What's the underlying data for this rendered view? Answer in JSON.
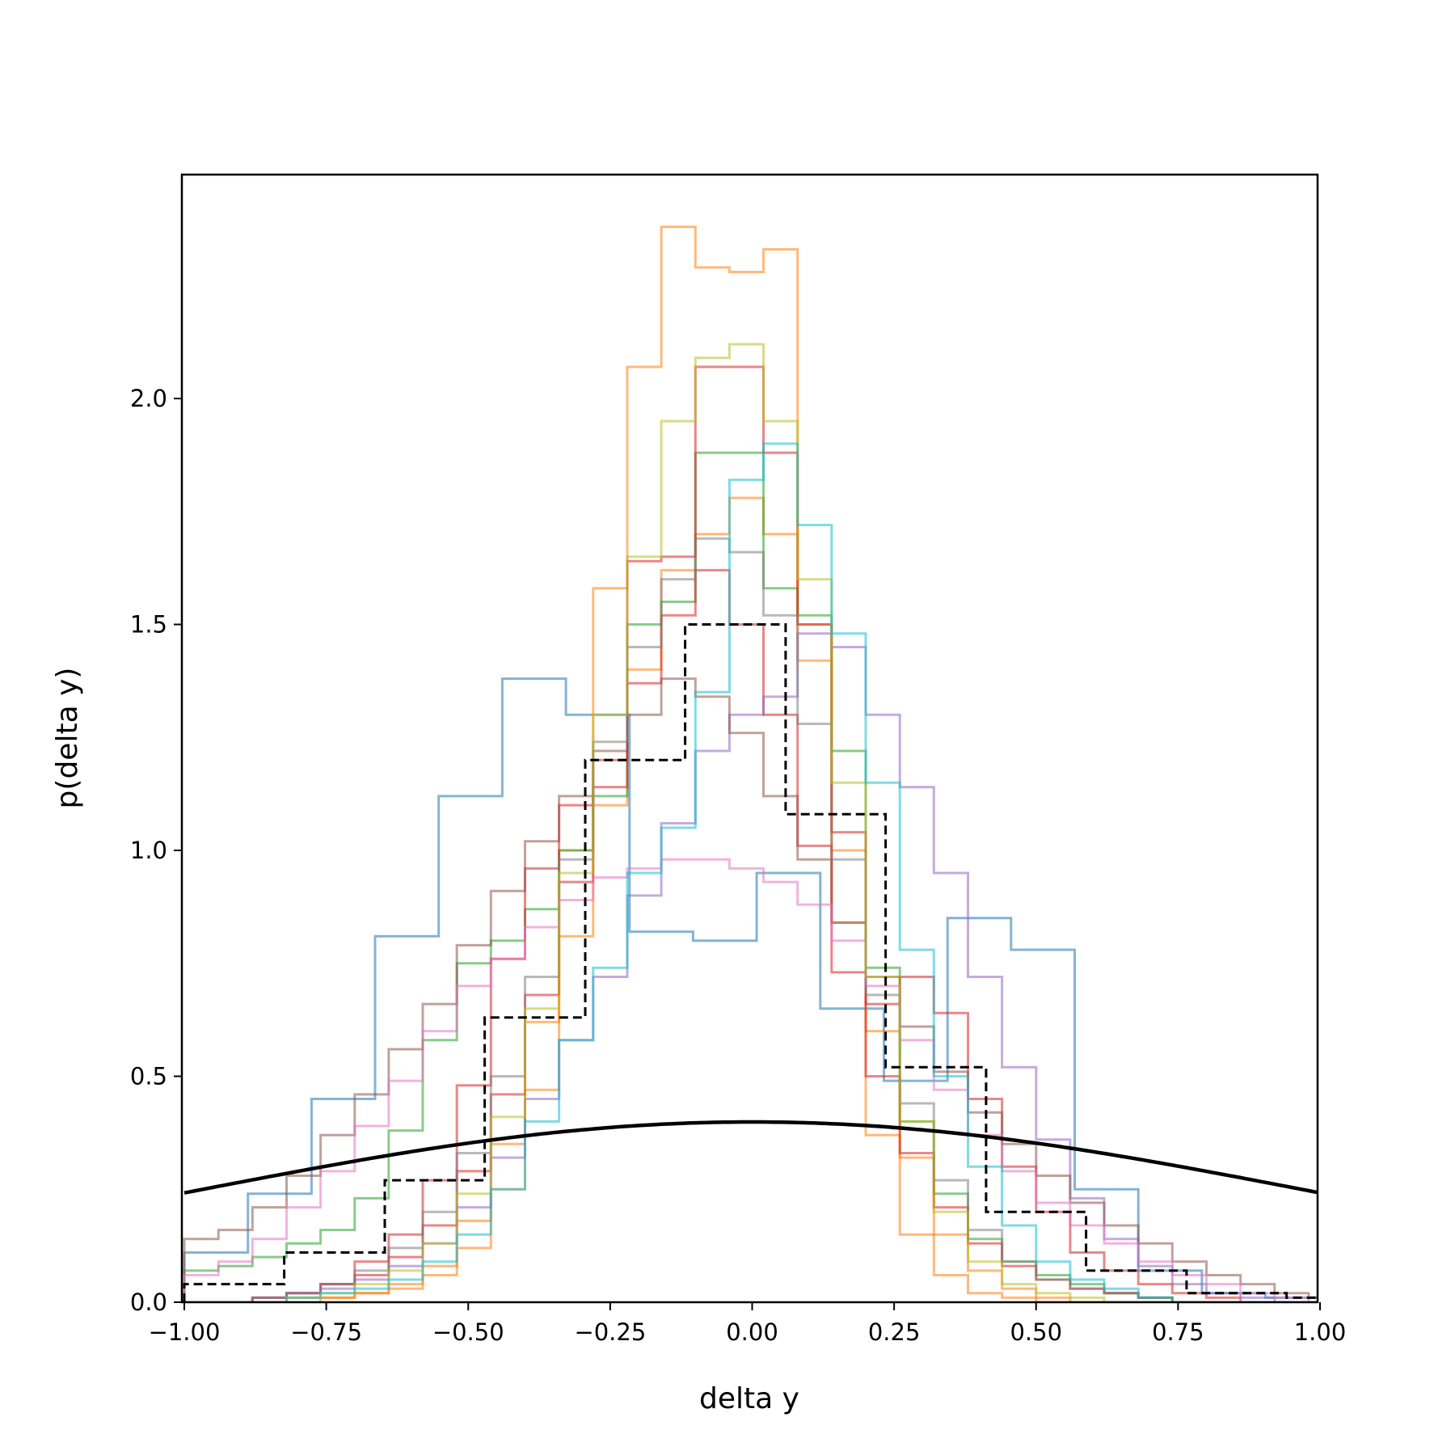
{
  "chart_data": {
    "type": "histogram",
    "title": "",
    "xlabel": "delta y",
    "ylabel": "p(delta y)",
    "xlim": [
      -1.0,
      1.0
    ],
    "ylim": [
      0.0,
      2.5
    ],
    "grid": false,
    "legend": "none",
    "x_ticks": [
      "−1.00",
      "−0.75",
      "−0.50",
      "−0.25",
      "0.00",
      "0.25",
      "0.50",
      "0.75",
      "1.00"
    ],
    "y_ticks": [
      "0.0",
      "0.5",
      "1.0",
      "1.5",
      "2.0"
    ],
    "reference_histogram": {
      "color": "#000000",
      "style": "dashed",
      "edges": [
        -1.0,
        -0.824,
        -0.647,
        -0.471,
        -0.294,
        -0.118,
        0.059,
        0.235,
        0.412,
        0.588,
        0.765,
        0.941,
        1.0
      ],
      "values": [
        0.04,
        0.11,
        0.27,
        0.63,
        1.2,
        1.5,
        1.08,
        0.52,
        0.2,
        0.07,
        0.02,
        0.01
      ]
    },
    "gaussian_curve": {
      "color": "#000000",
      "mean": 0.0,
      "std": 1.0,
      "peak": 0.399
    },
    "histograms": [
      {
        "color": "#1f77b4",
        "edges": [
          -1.0,
          -0.888,
          -0.776,
          -0.664,
          -0.552,
          -0.44,
          -0.328,
          -0.216,
          -0.104,
          0.008,
          0.12,
          0.232,
          0.344,
          0.456,
          0.568,
          0.68,
          0.792,
          0.904,
          1.0
        ],
        "values": [
          0.11,
          0.24,
          0.45,
          0.81,
          1.12,
          1.38,
          1.3,
          0.82,
          0.8,
          0.95,
          0.65,
          0.49,
          0.85,
          0.78,
          0.25,
          0.07,
          0.02,
          0.01
        ]
      },
      {
        "color": "#ff7f0e",
        "edges": [
          -1.0,
          -0.94,
          -0.88,
          -0.82,
          -0.76,
          -0.7,
          -0.64,
          -0.58,
          -0.52,
          -0.46,
          -0.4,
          -0.34,
          -0.28,
          -0.22,
          -0.16,
          -0.1,
          -0.04,
          0.02,
          0.08,
          0.14,
          0.2,
          0.26,
          0.32,
          0.38,
          0.44,
          0.5,
          0.56,
          0.62,
          0.68,
          0.74,
          0.8,
          0.86,
          0.92,
          0.98,
          1.0
        ],
        "values": [
          0.0,
          0.0,
          0.0,
          0.0,
          0.01,
          0.02,
          0.03,
          0.06,
          0.12,
          0.25,
          0.47,
          0.81,
          1.1,
          1.4,
          1.62,
          1.7,
          1.78,
          1.7,
          1.42,
          1.0,
          0.6,
          0.32,
          0.15,
          0.07,
          0.03,
          0.01,
          0.0,
          0.0,
          0.0,
          0.0,
          0.0,
          0.0,
          0.0,
          0.0
        ]
      },
      {
        "color": "#ff7f0e",
        "edges": [
          -1.0,
          -0.94,
          -0.88,
          -0.82,
          -0.76,
          -0.7,
          -0.64,
          -0.58,
          -0.52,
          -0.46,
          -0.4,
          -0.34,
          -0.28,
          -0.22,
          -0.16,
          -0.1,
          -0.04,
          0.02,
          0.08,
          0.14,
          0.2,
          0.26,
          0.32,
          0.38,
          0.44,
          0.5,
          0.56,
          0.62,
          0.68,
          0.74,
          0.8,
          0.86,
          0.92,
          0.98,
          1.0
        ],
        "values": [
          0.0,
          0.0,
          0.0,
          0.01,
          0.01,
          0.02,
          0.04,
          0.08,
          0.18,
          0.35,
          0.62,
          1.0,
          1.58,
          2.07,
          2.38,
          2.29,
          2.28,
          2.33,
          1.5,
          0.84,
          0.37,
          0.15,
          0.06,
          0.02,
          0.01,
          0.0,
          0.0,
          0.0,
          0.0,
          0.0,
          0.0,
          0.0,
          0.0,
          0.0
        ]
      },
      {
        "color": "#2ca02c",
        "edges": [
          -1.0,
          -0.94,
          -0.88,
          -0.82,
          -0.76,
          -0.7,
          -0.64,
          -0.58,
          -0.52,
          -0.46,
          -0.4,
          -0.34,
          -0.28,
          -0.22,
          -0.16,
          -0.1,
          -0.04,
          0.02,
          0.08,
          0.14,
          0.2,
          0.26,
          0.32,
          0.38,
          0.44,
          0.5,
          0.56,
          0.62,
          0.68,
          0.74,
          0.8,
          0.86,
          0.92,
          0.98,
          1.0
        ],
        "values": [
          0.07,
          0.08,
          0.1,
          0.13,
          0.16,
          0.23,
          0.38,
          0.58,
          0.75,
          0.8,
          0.87,
          1.0,
          1.12,
          1.5,
          1.55,
          1.88,
          1.88,
          1.58,
          1.52,
          1.22,
          0.74,
          0.4,
          0.24,
          0.14,
          0.09,
          0.06,
          0.04,
          0.02,
          0.01,
          0.0,
          0.0,
          0.0,
          0.0,
          0.0
        ]
      },
      {
        "color": "#d62728",
        "edges": [
          -1.0,
          -0.94,
          -0.88,
          -0.82,
          -0.76,
          -0.7,
          -0.64,
          -0.58,
          -0.52,
          -0.46,
          -0.4,
          -0.34,
          -0.28,
          -0.22,
          -0.16,
          -0.1,
          -0.04,
          0.02,
          0.08,
          0.14,
          0.2,
          0.26,
          0.32,
          0.38,
          0.44,
          0.5,
          0.56,
          0.62,
          0.68,
          0.74,
          0.8,
          0.86,
          0.92,
          0.98,
          1.0
        ],
        "values": [
          0.0,
          0.0,
          0.01,
          0.02,
          0.04,
          0.06,
          0.1,
          0.17,
          0.29,
          0.46,
          0.68,
          0.93,
          1.14,
          1.37,
          1.52,
          1.62,
          1.5,
          1.3,
          1.01,
          0.73,
          0.5,
          0.33,
          0.21,
          0.13,
          0.08,
          0.05,
          0.03,
          0.02,
          0.01,
          0.0,
          0.0,
          0.0,
          0.0,
          0.0
        ]
      },
      {
        "color": "#d62728",
        "edges": [
          -1.0,
          -0.94,
          -0.88,
          -0.82,
          -0.76,
          -0.7,
          -0.64,
          -0.58,
          -0.52,
          -0.46,
          -0.4,
          -0.34,
          -0.28,
          -0.22,
          -0.16,
          -0.1,
          -0.04,
          0.02,
          0.08,
          0.14,
          0.2,
          0.26,
          0.32,
          0.38,
          0.44,
          0.5,
          0.56,
          0.62,
          0.68,
          0.74,
          0.8,
          0.86,
          0.92,
          0.98,
          1.0
        ],
        "values": [
          0.0,
          0.0,
          0.01,
          0.02,
          0.04,
          0.09,
          0.15,
          0.27,
          0.48,
          0.76,
          0.96,
          1.1,
          1.2,
          1.64,
          1.65,
          2.07,
          2.07,
          1.88,
          1.5,
          1.04,
          0.66,
          0.72,
          0.64,
          0.45,
          0.3,
          0.2,
          0.11,
          0.07,
          0.04,
          0.02,
          0.01,
          0.0,
          0.0,
          0.0
        ]
      },
      {
        "color": "#9467bd",
        "edges": [
          -1.0,
          -0.94,
          -0.88,
          -0.82,
          -0.76,
          -0.7,
          -0.64,
          -0.58,
          -0.52,
          -0.46,
          -0.4,
          -0.34,
          -0.28,
          -0.22,
          -0.16,
          -0.1,
          -0.04,
          0.02,
          0.08,
          0.14,
          0.2,
          0.26,
          0.32,
          0.38,
          0.44,
          0.5,
          0.56,
          0.62,
          0.68,
          0.74,
          0.8,
          0.86,
          0.92,
          0.98,
          1.0
        ],
        "values": [
          0.0,
          0.0,
          0.01,
          0.02,
          0.03,
          0.05,
          0.08,
          0.13,
          0.21,
          0.32,
          0.45,
          0.58,
          0.72,
          0.9,
          1.06,
          1.22,
          1.3,
          1.34,
          1.48,
          1.45,
          1.3,
          1.14,
          0.95,
          0.72,
          0.52,
          0.36,
          0.23,
          0.14,
          0.08,
          0.04,
          0.02,
          0.01,
          0.0,
          0.0
        ]
      },
      {
        "color": "#8c564b",
        "edges": [
          -1.0,
          -0.94,
          -0.88,
          -0.82,
          -0.76,
          -0.7,
          -0.64,
          -0.58,
          -0.52,
          -0.46,
          -0.4,
          -0.34,
          -0.28,
          -0.22,
          -0.16,
          -0.1,
          -0.04,
          0.02,
          0.08,
          0.14,
          0.2,
          0.26,
          0.32,
          0.38,
          0.44,
          0.5,
          0.56,
          0.62,
          0.68,
          0.74,
          0.8,
          0.86,
          0.92,
          0.98,
          1.0
        ],
        "values": [
          0.14,
          0.16,
          0.21,
          0.28,
          0.37,
          0.46,
          0.56,
          0.66,
          0.79,
          0.91,
          1.02,
          1.12,
          1.22,
          1.3,
          1.38,
          1.34,
          1.26,
          1.12,
          0.98,
          0.84,
          0.72,
          0.61,
          0.51,
          0.42,
          0.35,
          0.28,
          0.22,
          0.17,
          0.13,
          0.09,
          0.06,
          0.04,
          0.02,
          0.01
        ]
      },
      {
        "color": "#e377c2",
        "edges": [
          -1.0,
          -0.94,
          -0.88,
          -0.82,
          -0.76,
          -0.7,
          -0.64,
          -0.58,
          -0.52,
          -0.46,
          -0.4,
          -0.34,
          -0.28,
          -0.22,
          -0.16,
          -0.1,
          -0.04,
          0.02,
          0.08,
          0.14,
          0.2,
          0.26,
          0.32,
          0.38,
          0.44,
          0.5,
          0.56,
          0.62,
          0.68,
          0.74,
          0.8,
          0.86,
          0.92,
          0.98,
          1.0
        ],
        "values": [
          0.06,
          0.09,
          0.14,
          0.21,
          0.29,
          0.39,
          0.49,
          0.6,
          0.7,
          0.76,
          0.83,
          0.89,
          0.94,
          0.96,
          0.98,
          0.98,
          0.96,
          0.93,
          0.88,
          0.8,
          0.7,
          0.58,
          0.47,
          0.37,
          0.29,
          0.22,
          0.17,
          0.13,
          0.09,
          0.06,
          0.04,
          0.02,
          0.01,
          0.0
        ]
      },
      {
        "color": "#7f7f7f",
        "edges": [
          -1.0,
          -0.94,
          -0.88,
          -0.82,
          -0.76,
          -0.7,
          -0.64,
          -0.58,
          -0.52,
          -0.46,
          -0.4,
          -0.34,
          -0.28,
          -0.22,
          -0.16,
          -0.1,
          -0.04,
          0.02,
          0.08,
          0.14,
          0.2,
          0.26,
          0.32,
          0.38,
          0.44,
          0.5,
          0.56,
          0.62,
          0.68,
          0.74,
          0.8,
          0.86,
          0.92,
          0.98,
          1.0
        ],
        "values": [
          0.0,
          0.0,
          0.01,
          0.02,
          0.04,
          0.07,
          0.12,
          0.2,
          0.33,
          0.5,
          0.72,
          0.98,
          1.24,
          1.45,
          1.6,
          1.69,
          1.66,
          1.52,
          1.28,
          0.98,
          0.68,
          0.44,
          0.27,
          0.16,
          0.09,
          0.05,
          0.03,
          0.02,
          0.01,
          0.0,
          0.0,
          0.0,
          0.0,
          0.0
        ]
      },
      {
        "color": "#bcbd22",
        "edges": [
          -1.0,
          -0.94,
          -0.88,
          -0.82,
          -0.76,
          -0.7,
          -0.64,
          -0.58,
          -0.52,
          -0.46,
          -0.4,
          -0.34,
          -0.28,
          -0.22,
          -0.16,
          -0.1,
          -0.04,
          0.02,
          0.08,
          0.14,
          0.2,
          0.26,
          0.32,
          0.38,
          0.44,
          0.5,
          0.56,
          0.62,
          0.68,
          0.74,
          0.8,
          0.86,
          0.92,
          0.98,
          1.0
        ],
        "values": [
          0.0,
          0.0,
          0.0,
          0.01,
          0.02,
          0.04,
          0.07,
          0.13,
          0.24,
          0.41,
          0.65,
          0.95,
          1.3,
          1.65,
          1.95,
          2.09,
          2.12,
          1.95,
          1.6,
          1.15,
          0.72,
          0.4,
          0.2,
          0.09,
          0.04,
          0.02,
          0.01,
          0.0,
          0.0,
          0.0,
          0.0,
          0.0,
          0.0,
          0.0
        ]
      },
      {
        "color": "#17becf",
        "edges": [
          -1.0,
          -0.94,
          -0.88,
          -0.82,
          -0.76,
          -0.7,
          -0.64,
          -0.58,
          -0.52,
          -0.46,
          -0.4,
          -0.34,
          -0.28,
          -0.22,
          -0.16,
          -0.1,
          -0.04,
          0.02,
          0.08,
          0.14,
          0.2,
          0.26,
          0.32,
          0.38,
          0.44,
          0.5,
          0.56,
          0.62,
          0.68,
          0.74,
          0.8,
          0.86,
          0.92,
          0.98,
          1.0
        ],
        "values": [
          0.0,
          0.0,
          0.0,
          0.01,
          0.02,
          0.03,
          0.05,
          0.09,
          0.15,
          0.25,
          0.4,
          0.58,
          0.74,
          0.95,
          1.05,
          1.35,
          1.82,
          1.9,
          1.72,
          1.48,
          1.15,
          0.78,
          0.5,
          0.3,
          0.17,
          0.09,
          0.05,
          0.03,
          0.01,
          0.0,
          0.0,
          0.0,
          0.0,
          0.0
        ]
      }
    ]
  }
}
